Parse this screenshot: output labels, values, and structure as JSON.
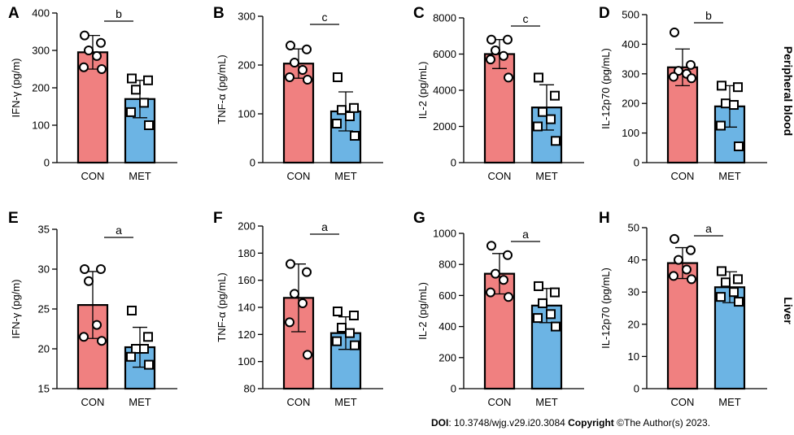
{
  "colors": {
    "con": "#F08080",
    "met": "#6CB4E4",
    "axis": "#000000"
  },
  "row_labels": {
    "top": "Peripheral blood",
    "bottom": "Liver"
  },
  "footer": {
    "doi_label": "DOI",
    "doi_text": ": 10.3748/wjg.v29.i20.3084",
    "copyright_label": "Copyright",
    "copyright_text": " ©The Author(s) 2023."
  },
  "chart_data": [
    {
      "panel": "A",
      "type": "bar",
      "categories": [
        "CON",
        "MET"
      ],
      "ylabel": "IFN-γ (pg/m)",
      "ylim": [
        0,
        400
      ],
      "yticks": [
        0,
        100,
        200,
        300,
        400
      ],
      "significance": "b",
      "series": [
        {
          "category": "CON",
          "mean": 295,
          "sd": 45,
          "marker": "circle",
          "points": [
            340,
            320,
            300,
            285,
            255,
            250
          ]
        },
        {
          "category": "MET",
          "mean": 170,
          "sd": 50,
          "marker": "square",
          "points": [
            225,
            220,
            195,
            160,
            135,
            100
          ]
        }
      ]
    },
    {
      "panel": "B",
      "type": "bar",
      "categories": [
        "CON",
        "MET"
      ],
      "ylabel": "TNF-α (pg/mL)",
      "ylim": [
        0,
        300
      ],
      "yticks": [
        0,
        100,
        200,
        300
      ],
      "significance": "c",
      "series": [
        {
          "category": "CON",
          "mean": 203,
          "sd": 30,
          "marker": "circle",
          "points": [
            240,
            232,
            205,
            190,
            175,
            170
          ]
        },
        {
          "category": "MET",
          "mean": 105,
          "sd": 40,
          "marker": "square",
          "points": [
            175,
            112,
            108,
            95,
            80,
            55
          ]
        }
      ]
    },
    {
      "panel": "C",
      "type": "bar",
      "categories": [
        "CON",
        "MET"
      ],
      "ylabel": "IL-2 (pg/mL)",
      "ylim": [
        0,
        8000
      ],
      "yticks": [
        0,
        2000,
        4000,
        6000,
        8000
      ],
      "significance": "c",
      "series": [
        {
          "category": "CON",
          "mean": 6000,
          "sd": 800,
          "marker": "circle",
          "points": [
            6800,
            6800,
            6200,
            5900,
            5700,
            4700
          ]
        },
        {
          "category": "MET",
          "mean": 3050,
          "sd": 1250,
          "marker": "square",
          "points": [
            4700,
            3700,
            2800,
            2400,
            2000,
            1200
          ]
        }
      ]
    },
    {
      "panel": "D",
      "type": "bar",
      "categories": [
        "CON",
        "MET"
      ],
      "ylabel": "IL-12p70 (pg/mL)",
      "ylim": [
        0,
        500
      ],
      "yticks": [
        0,
        100,
        200,
        300,
        400,
        500
      ],
      "significance": "b",
      "series": [
        {
          "category": "CON",
          "mean": 322,
          "sd": 62,
          "marker": "circle",
          "points": [
            440,
            330,
            310,
            300,
            290,
            285
          ]
        },
        {
          "category": "MET",
          "mean": 190,
          "sd": 70,
          "marker": "square",
          "points": [
            260,
            255,
            200,
            195,
            125,
            55
          ]
        }
      ]
    },
    {
      "panel": "E",
      "type": "bar",
      "categories": [
        "CON",
        "MET"
      ],
      "ylabel": "IFN-γ (pg/m)",
      "ylim": [
        15,
        35
      ],
      "yticks": [
        15,
        20,
        25,
        30,
        35
      ],
      "significance": "a",
      "series": [
        {
          "category": "CON",
          "mean": 25.5,
          "sd": 4.2,
          "marker": "circle",
          "points": [
            30,
            30,
            28.5,
            23,
            21.5,
            21
          ]
        },
        {
          "category": "MET",
          "mean": 20.2,
          "sd": 2.5,
          "marker": "square",
          "points": [
            24.8,
            21.5,
            20,
            20,
            19,
            18
          ]
        }
      ]
    },
    {
      "panel": "F",
      "type": "bar",
      "categories": [
        "CON",
        "MET"
      ],
      "ylabel": "TNF-α (pg/mL)",
      "ylim": [
        80,
        200
      ],
      "yticks": [
        80,
        100,
        120,
        140,
        160,
        180,
        200
      ],
      "significance": "a",
      "series": [
        {
          "category": "CON",
          "mean": 147,
          "sd": 25,
          "marker": "circle",
          "points": [
            172,
            166,
            150,
            143,
            129,
            105
          ]
        },
        {
          "category": "MET",
          "mean": 121,
          "sd": 12,
          "marker": "square",
          "points": [
            137,
            134,
            125,
            121,
            115,
            112
          ]
        }
      ]
    },
    {
      "panel": "G",
      "type": "bar",
      "categories": [
        "CON",
        "MET"
      ],
      "ylabel": "IL-2 (pg/mL)",
      "ylim": [
        0,
        1000
      ],
      "yticks": [
        0,
        200,
        400,
        600,
        800,
        1000
      ],
      "significance": "a",
      "series": [
        {
          "category": "CON",
          "mean": 740,
          "sd": 130,
          "marker": "circle",
          "points": [
            920,
            860,
            740,
            700,
            620,
            590
          ]
        },
        {
          "category": "MET",
          "mean": 535,
          "sd": 110,
          "marker": "square",
          "points": [
            660,
            620,
            550,
            480,
            455,
            400
          ]
        }
      ]
    },
    {
      "panel": "H",
      "type": "bar",
      "categories": [
        "CON",
        "MET"
      ],
      "ylabel": "IL-12p70 (pg/mL)",
      "ylim": [
        0,
        50
      ],
      "yticks": [
        0,
        10,
        20,
        30,
        40,
        50
      ],
      "significance": "a",
      "series": [
        {
          "category": "CON",
          "mean": 39,
          "sd": 4.8,
          "marker": "circle",
          "points": [
            46.5,
            43,
            40,
            37,
            35,
            34
          ]
        },
        {
          "category": "MET",
          "mean": 31.5,
          "sd": 4.8,
          "marker": "square",
          "points": [
            36.5,
            34,
            33,
            30,
            28.5,
            27
          ]
        }
      ]
    }
  ]
}
